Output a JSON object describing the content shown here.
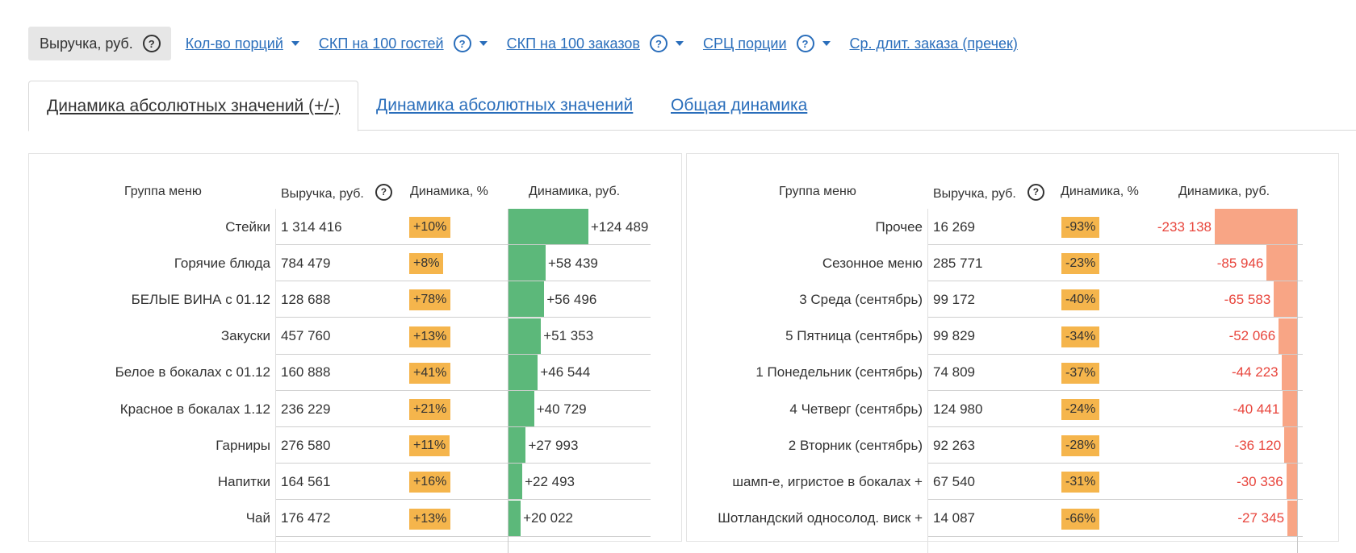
{
  "metrics": [
    {
      "label": "Выручка, руб.",
      "active": true,
      "help": true,
      "dropdown": false
    },
    {
      "label": "Кол-во порций",
      "active": false,
      "help": false,
      "dropdown": true
    },
    {
      "label": "СКП на 100 гостей ",
      "active": false,
      "help": true,
      "dropdown": true
    },
    {
      "label": "СКП на 100 заказов ",
      "active": false,
      "help": true,
      "dropdown": true
    },
    {
      "label": "СРЦ порции ",
      "active": false,
      "help": true,
      "dropdown": true
    },
    {
      "label": "Ср. длит. заказа (пречек)",
      "active": false,
      "help": false,
      "dropdown": false
    }
  ],
  "tabs": [
    {
      "label": "Динамика абсолютных значений (+/-)",
      "active": true
    },
    {
      "label": "Динамика абсолютных значений",
      "active": false
    },
    {
      "label": "Общая динамика",
      "active": false
    }
  ],
  "colors": {
    "positive": "#5cb87a",
    "negative": "#f8a585",
    "badge": "#f5b54c",
    "link": "#2a6ebb",
    "negative_text": "#e8453c"
  },
  "left_table": {
    "headers": {
      "group": "Группа меню",
      "revenue": "Выручка, руб.",
      "pct": "Динамика, %",
      "abs": "Динамика, руб."
    },
    "rows": [
      {
        "name": "Стейки",
        "revenue": "1 314 416",
        "pct": "+10%",
        "abs_label": "+124 489",
        "abs": 124489
      },
      {
        "name": "Горячие блюда",
        "revenue": "784 479",
        "pct": "+8%",
        "abs_label": "+58 439",
        "abs": 58439
      },
      {
        "name": "БЕЛЫЕ ВИНА с 01.12",
        "revenue": "128 688",
        "pct": "+78%",
        "abs_label": "+56 496",
        "abs": 56496
      },
      {
        "name": "Закуски",
        "revenue": "457 760",
        "pct": "+13%",
        "abs_label": "+51 353",
        "abs": 51353
      },
      {
        "name": "Белое в бокалах с 01.12",
        "revenue": "160 888",
        "pct": "+41%",
        "abs_label": "+46 544",
        "abs": 46544
      },
      {
        "name": "Красное в бокалах 1.12",
        "revenue": "236 229",
        "pct": "+21%",
        "abs_label": "+40 729",
        "abs": 40729
      },
      {
        "name": "Гарниры",
        "revenue": "276 580",
        "pct": "+11%",
        "abs_label": "+27 993",
        "abs": 27993
      },
      {
        "name": "Напитки",
        "revenue": "164 561",
        "pct": "+16%",
        "abs_label": "+22 493",
        "abs": 22493
      },
      {
        "name": "Чай",
        "revenue": "176 472",
        "pct": "+13%",
        "abs_label": "+20 022",
        "abs": 20022
      }
    ]
  },
  "right_table": {
    "headers": {
      "group": "Группа меню",
      "revenue": "Выручка, руб.",
      "pct": "Динамика, %",
      "abs": "Динамика, руб."
    },
    "rows": [
      {
        "name": "Прочее",
        "revenue": "16 269",
        "pct": "-93%",
        "abs_label": "-233 138",
        "abs": -233138
      },
      {
        "name": "Сезонное меню",
        "revenue": "285 771",
        "pct": "-23%",
        "abs_label": "-85 946",
        "abs": -85946
      },
      {
        "name": "3 Среда (сентябрь)",
        "revenue": "99 172",
        "pct": "-40%",
        "abs_label": "-65 583",
        "abs": -65583
      },
      {
        "name": "5 Пятница (сентябрь)",
        "revenue": "99 829",
        "pct": "-34%",
        "abs_label": "-52 066",
        "abs": -52066
      },
      {
        "name": "1 Понедельник (сентябрь)",
        "revenue": "74 809",
        "pct": "-37%",
        "abs_label": "-44 223",
        "abs": -44223
      },
      {
        "name": "4 Четверг (сентябрь)",
        "revenue": "124 980",
        "pct": "-24%",
        "abs_label": "-40 441",
        "abs": -40441
      },
      {
        "name": "2 Вторник (сентябрь)",
        "revenue": "92 263",
        "pct": "-28%",
        "abs_label": "-36 120",
        "abs": -36120
      },
      {
        "name": "шамп-е, игристое в бокалах +",
        "revenue": "67 540",
        "pct": "-31%",
        "abs_label": "-30 336",
        "abs": -30336
      },
      {
        "name": "Шотландский односолод. виск +",
        "revenue": "14 087",
        "pct": "-66%",
        "abs_label": "-27 345",
        "abs": -27345
      }
    ]
  }
}
